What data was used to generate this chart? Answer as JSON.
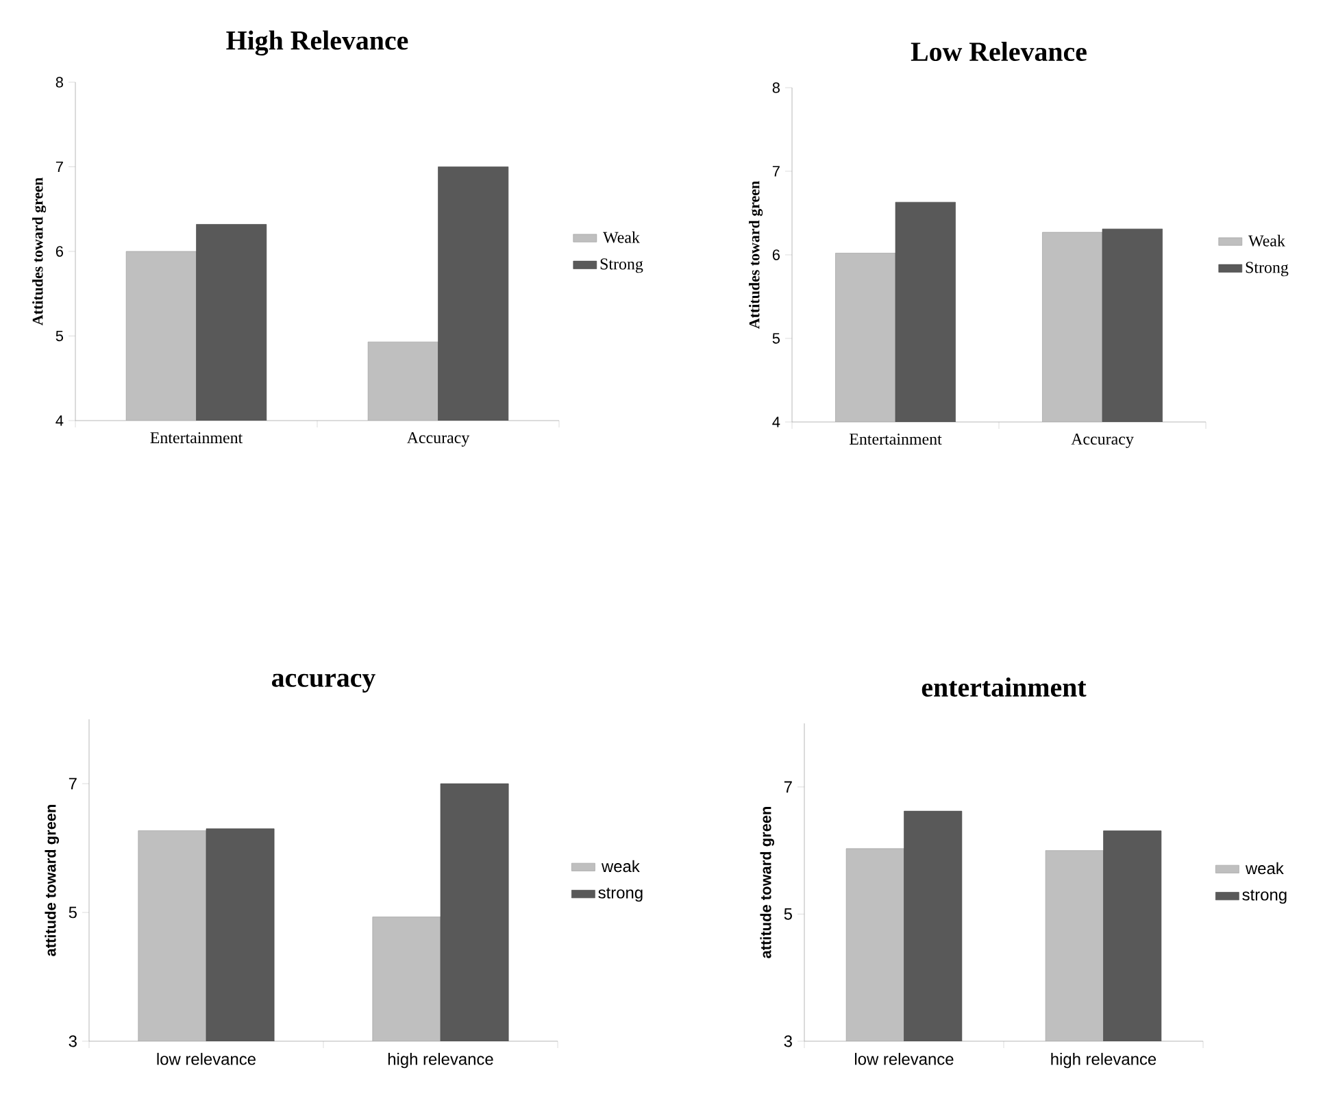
{
  "chart_data": [
    {
      "type": "bar",
      "title": "High Relevance",
      "ylabel": "Attitudes toward green",
      "categories": [
        "Entertainment",
        "Accuracy"
      ],
      "ylim": [
        4,
        8
      ],
      "yticks": [
        4,
        5,
        6,
        7,
        8
      ],
      "legend": "right",
      "series": [
        {
          "name": "Weak",
          "color": "#bfbfbf",
          "values": [
            6.0,
            4.93
          ]
        },
        {
          "name": "Strong",
          "color": "#595959",
          "values": [
            6.32,
            7.0
          ]
        }
      ]
    },
    {
      "type": "bar",
      "title": "Low Relevance",
      "ylabel": "Attitudes toward green",
      "categories": [
        "Entertainment",
        "Accuracy"
      ],
      "ylim": [
        4,
        8
      ],
      "yticks": [
        4,
        5,
        6,
        7,
        8
      ],
      "legend": "right",
      "series": [
        {
          "name": "Weak",
          "color": "#bfbfbf",
          "values": [
            6.02,
            6.27
          ]
        },
        {
          "name": "Strong",
          "color": "#595959",
          "values": [
            6.63,
            6.31
          ]
        }
      ]
    },
    {
      "type": "bar",
      "title": "accuracy",
      "ylabel": "attitude toward green",
      "categories": [
        "low relevance",
        "high relevance"
      ],
      "ylim": [
        3,
        8
      ],
      "yticks": [
        3,
        5,
        7
      ],
      "legend": "right",
      "series": [
        {
          "name": "weak",
          "color": "#bfbfbf",
          "values": [
            6.27,
            4.93
          ]
        },
        {
          "name": "strong",
          "color": "#595959",
          "values": [
            6.3,
            7.0
          ]
        }
      ]
    },
    {
      "type": "bar",
      "title": "entertainment",
      "ylabel": "attitude toward green",
      "categories": [
        "low relevance",
        "high relevance"
      ],
      "ylim": [
        3,
        8
      ],
      "yticks": [
        3,
        5,
        7
      ],
      "legend": "right",
      "series": [
        {
          "name": "weak",
          "color": "#bfbfbf",
          "values": [
            6.03,
            6.0
          ]
        },
        {
          "name": "strong",
          "color": "#595959",
          "values": [
            6.62,
            6.31
          ]
        }
      ]
    }
  ]
}
